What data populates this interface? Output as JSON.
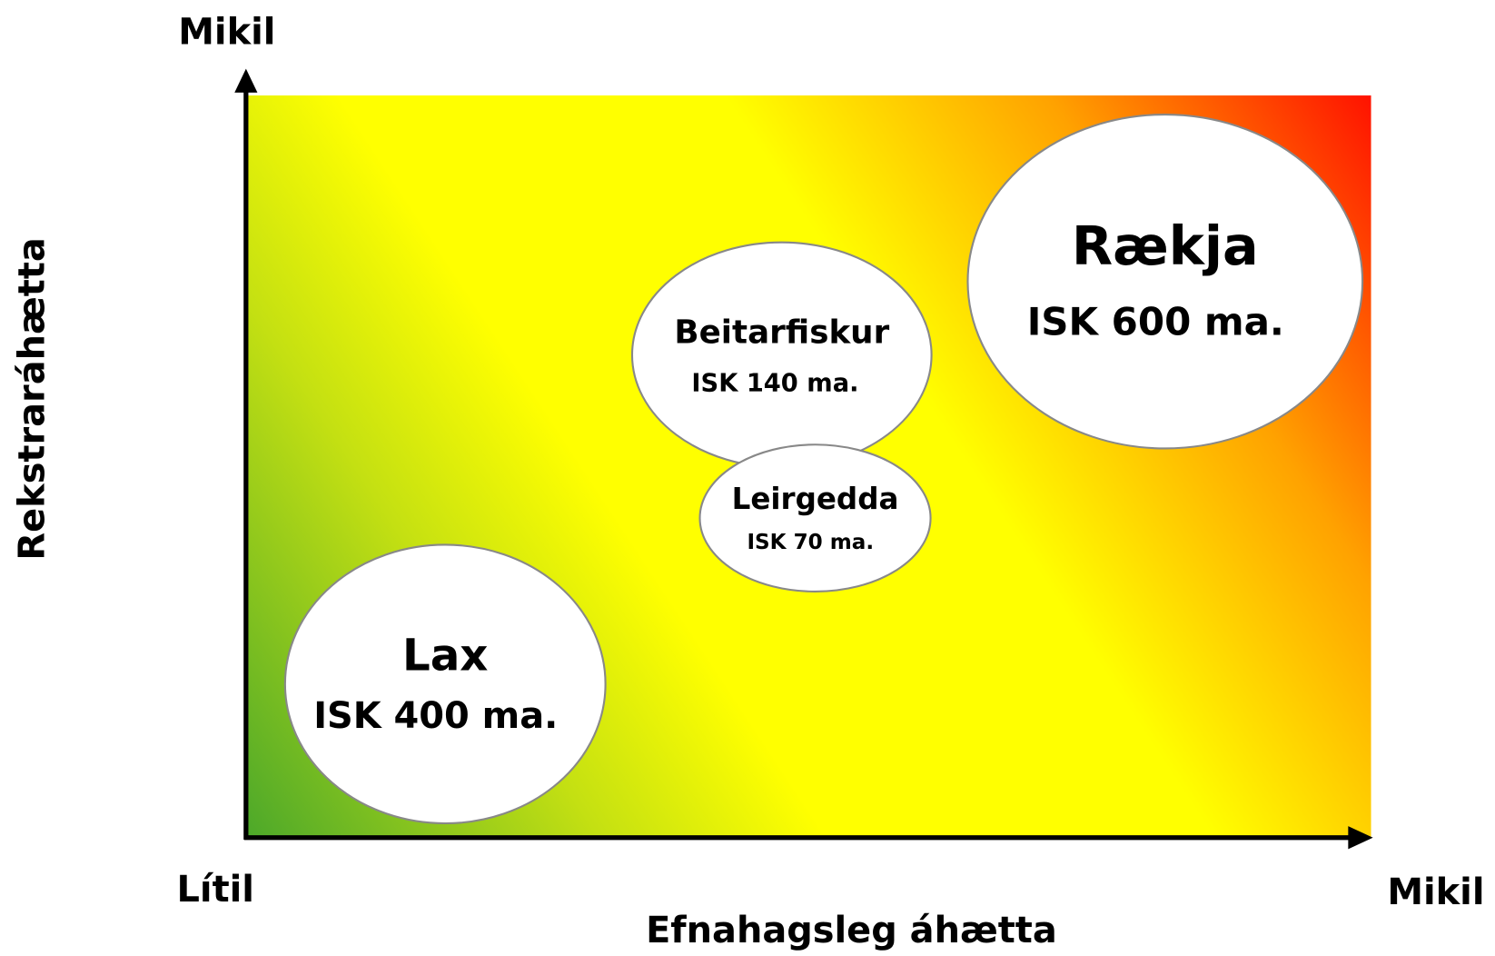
{
  "axes": {
    "y_top_label": "Mikil",
    "x_left_label": "Lítil",
    "x_right_label": "Mikil",
    "x_title": "Efnahagsleg áhætta",
    "y_title": "Rekstraráhætta"
  },
  "nodes": [
    {
      "label": "Rækja",
      "value": "ISK 600 ma."
    },
    {
      "label": "Beitarfiskur",
      "value": "ISK 140 ma."
    },
    {
      "label": "Leirgedda",
      "value": "ISK 70 ma."
    },
    {
      "label": "Lax",
      "value": "ISK 400 ma."
    }
  ]
}
